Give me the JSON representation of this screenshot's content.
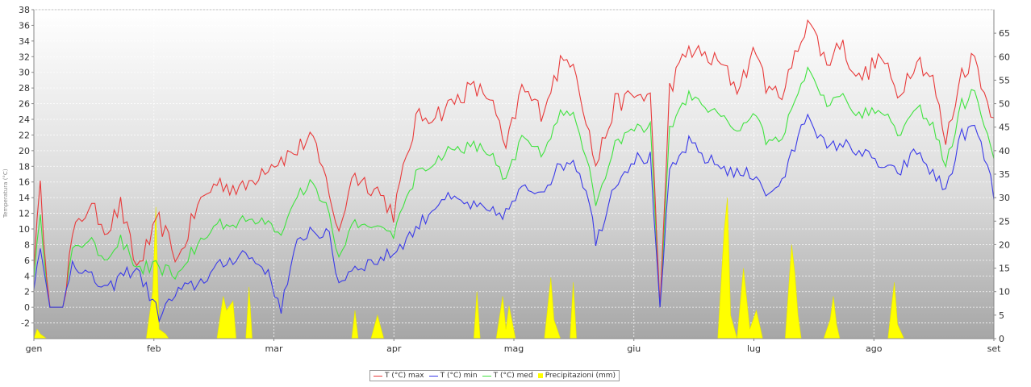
{
  "chart_data": {
    "type": "line",
    "title": "",
    "xlabel": "",
    "ylabel": "Temperatura (°C)",
    "y2label": "",
    "months": [
      "gen",
      "feb",
      "mar",
      "apr",
      "mag",
      "giu",
      "lug",
      "ago",
      "set"
    ],
    "ylim": [
      -4,
      38
    ],
    "y2lim": [
      0,
      70
    ],
    "yticks": [
      -2,
      0,
      2,
      4,
      6,
      8,
      10,
      12,
      14,
      16,
      18,
      20,
      22,
      24,
      26,
      28,
      30,
      32,
      34,
      36,
      38
    ],
    "y2ticks": [
      0,
      5,
      10,
      15,
      20,
      25,
      30,
      35,
      40,
      45,
      50,
      55,
      60,
      65
    ],
    "grid": true,
    "legend_position": "bottom-center",
    "colors": {
      "max": "#e83a3a",
      "min": "#3a3ae8",
      "med": "#3fe33f",
      "rain": "#ffff00"
    },
    "x_unit": "day_of_year_from_1_jan",
    "tmax_keypoints": [
      [
        1,
        6
      ],
      [
        3,
        15
      ],
      [
        6,
        0
      ],
      [
        10,
        0
      ],
      [
        13,
        9
      ],
      [
        18,
        13
      ],
      [
        24,
        10
      ],
      [
        28,
        13
      ],
      [
        33,
        5
      ],
      [
        40,
        11
      ],
      [
        46,
        6
      ],
      [
        52,
        13
      ],
      [
        58,
        16
      ],
      [
        66,
        15
      ],
      [
        73,
        18
      ],
      [
        83,
        20
      ],
      [
        87,
        22
      ],
      [
        93,
        15
      ],
      [
        96,
        9
      ],
      [
        100,
        17
      ],
      [
        108,
        15
      ],
      [
        113,
        12
      ],
      [
        120,
        24
      ],
      [
        128,
        25
      ],
      [
        137,
        28
      ],
      [
        143,
        27
      ],
      [
        148,
        20
      ],
      [
        153,
        28
      ],
      [
        159,
        25
      ],
      [
        165,
        31
      ],
      [
        169,
        32
      ],
      [
        174,
        22
      ],
      [
        176,
        18
      ],
      [
        182,
        26
      ],
      [
        188,
        27
      ],
      [
        193,
        27
      ],
      [
        196,
        0
      ],
      [
        199,
        28
      ],
      [
        205,
        33
      ],
      [
        210,
        32
      ],
      [
        215,
        31
      ],
      [
        220,
        28
      ],
      [
        226,
        33
      ],
      [
        230,
        27
      ],
      [
        235,
        28
      ],
      [
        242,
        37
      ],
      [
        248,
        31
      ],
      [
        252,
        34
      ],
      [
        258,
        29
      ],
      [
        265,
        32
      ],
      [
        270,
        27
      ],
      [
        276,
        32
      ],
      [
        281,
        29
      ],
      [
        285,
        21
      ],
      [
        290,
        30
      ],
      [
        294,
        32
      ],
      [
        298,
        26
      ],
      [
        300,
        25
      ]
    ],
    "tmin_keypoints": [
      [
        1,
        3
      ],
      [
        3,
        7
      ],
      [
        6,
        0
      ],
      [
        10,
        0
      ],
      [
        13,
        6
      ],
      [
        18,
        4
      ],
      [
        24,
        2
      ],
      [
        28,
        4
      ],
      [
        33,
        5
      ],
      [
        40,
        -1
      ],
      [
        46,
        2
      ],
      [
        52,
        3
      ],
      [
        58,
        5
      ],
      [
        66,
        7
      ],
      [
        73,
        5
      ],
      [
        78,
        0
      ],
      [
        83,
        8
      ],
      [
        87,
        10
      ],
      [
        93,
        9
      ],
      [
        96,
        3
      ],
      [
        100,
        5
      ],
      [
        108,
        6
      ],
      [
        113,
        7
      ],
      [
        120,
        10
      ],
      [
        128,
        14
      ],
      [
        137,
        13
      ],
      [
        143,
        12
      ],
      [
        148,
        12
      ],
      [
        153,
        15
      ],
      [
        159,
        15
      ],
      [
        165,
        18
      ],
      [
        169,
        19
      ],
      [
        174,
        14
      ],
      [
        176,
        8
      ],
      [
        182,
        16
      ],
      [
        188,
        19
      ],
      [
        193,
        19
      ],
      [
        196,
        0
      ],
      [
        199,
        17
      ],
      [
        205,
        21
      ],
      [
        210,
        19
      ],
      [
        215,
        18
      ],
      [
        220,
        17
      ],
      [
        226,
        17
      ],
      [
        230,
        14
      ],
      [
        235,
        17
      ],
      [
        242,
        25
      ],
      [
        248,
        20
      ],
      [
        252,
        21
      ],
      [
        258,
        20
      ],
      [
        265,
        18
      ],
      [
        270,
        17
      ],
      [
        276,
        20
      ],
      [
        281,
        17
      ],
      [
        285,
        15
      ],
      [
        290,
        22
      ],
      [
        294,
        23
      ],
      [
        298,
        18
      ],
      [
        300,
        14
      ]
    ],
    "precip_keypoints": [
      [
        1,
        0
      ],
      [
        2,
        2
      ],
      [
        3,
        1
      ],
      [
        5,
        0
      ],
      [
        36,
        0
      ],
      [
        38,
        10
      ],
      [
        39,
        28
      ],
      [
        40,
        2
      ],
      [
        42,
        1
      ],
      [
        43,
        0
      ],
      [
        58,
        0
      ],
      [
        60,
        9
      ],
      [
        61,
        6
      ],
      [
        63,
        8
      ],
      [
        64,
        0
      ],
      [
        67,
        0
      ],
      [
        68,
        11
      ],
      [
        69,
        0
      ],
      [
        100,
        0
      ],
      [
        101,
        6
      ],
      [
        102,
        0
      ],
      [
        106,
        0
      ],
      [
        108,
        5
      ],
      [
        110,
        0
      ],
      [
        138,
        0
      ],
      [
        139,
        10
      ],
      [
        140,
        0
      ],
      [
        145,
        0
      ],
      [
        147,
        9
      ],
      [
        148,
        2
      ],
      [
        149,
        7
      ],
      [
        151,
        0
      ],
      [
        160,
        0
      ],
      [
        162,
        13
      ],
      [
        163,
        4
      ],
      [
        165,
        0
      ],
      [
        168,
        0
      ],
      [
        169,
        12
      ],
      [
        170,
        0
      ],
      [
        214,
        0
      ],
      [
        216,
        23
      ],
      [
        217,
        30
      ],
      [
        218,
        5
      ],
      [
        220,
        0
      ],
      [
        222,
        15
      ],
      [
        224,
        2
      ],
      [
        226,
        6
      ],
      [
        228,
        0
      ],
      [
        235,
        0
      ],
      [
        237,
        20
      ],
      [
        238,
        14
      ],
      [
        239,
        5
      ],
      [
        240,
        0
      ],
      [
        247,
        0
      ],
      [
        249,
        4
      ],
      [
        250,
        9
      ],
      [
        251,
        3
      ],
      [
        252,
        0
      ],
      [
        267,
        0
      ],
      [
        269,
        12
      ],
      [
        270,
        3
      ],
      [
        272,
        0
      ],
      [
        300,
        0
      ]
    ],
    "legend": [
      {
        "label": "T (°C) max",
        "kind": "line",
        "color": "#e83a3a"
      },
      {
        "label": "T (°C) min",
        "kind": "line",
        "color": "#3a3ae8"
      },
      {
        "label": "T (°C) med",
        "kind": "line",
        "color": "#3fe33f"
      },
      {
        "label": "Precipitazioni (mm)",
        "kind": "square",
        "color": "#ffff00"
      }
    ]
  }
}
